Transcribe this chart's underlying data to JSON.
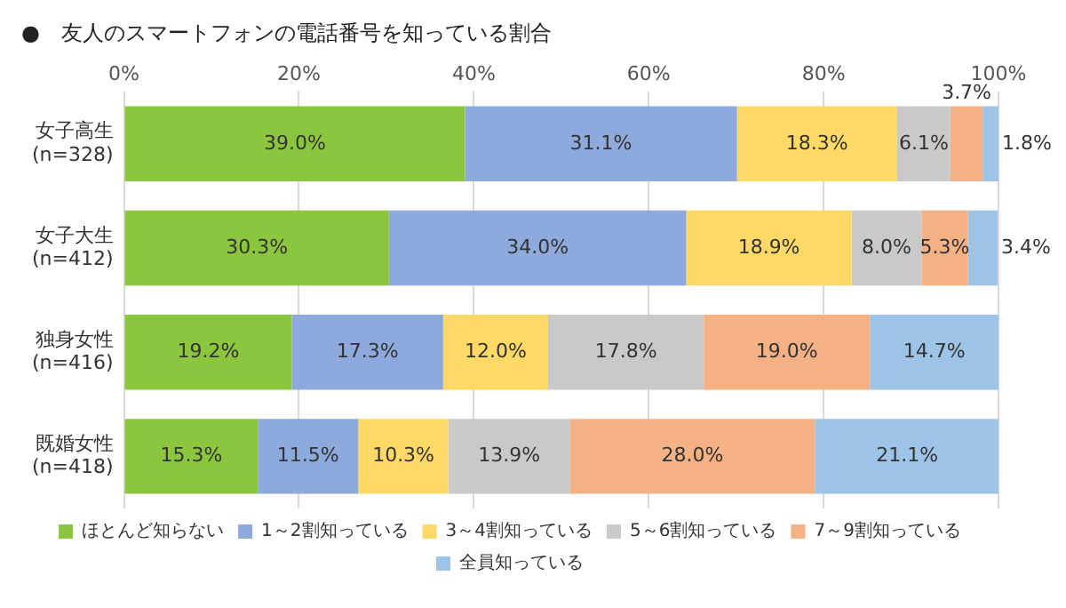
{
  "chart_data": {
    "type": "bar",
    "orientation": "horizontal",
    "stacked": true,
    "title": "●　友人のスマートフォンの電話番号を知っている割合",
    "categories": [
      "女子高生\n(n=328)",
      "女子大生\n(n=412)",
      "独身女性\n(n=416)",
      "既婚女性\n(n=418)"
    ],
    "series": [
      {
        "name": "ほとんど知らない",
        "color": "#8cc63f",
        "values": [
          39.0,
          30.3,
          19.2,
          15.3
        ],
        "value_labels": [
          "39.0%",
          "30.3%",
          "19.2%",
          "15.3%"
        ]
      },
      {
        "name": "1～2割知っている",
        "color": "#8ea9db",
        "values": [
          31.1,
          34.0,
          17.3,
          11.5
        ],
        "value_labels": [
          "31.1%",
          "34.0%",
          "17.3%",
          "11.5%"
        ]
      },
      {
        "name": "3～4割知っている",
        "color": "#ffd966",
        "values": [
          18.3,
          18.9,
          12.0,
          10.3
        ],
        "value_labels": [
          "18.3%",
          "18.9%",
          "12.0%",
          "10.3%"
        ]
      },
      {
        "name": "5～6割知っている",
        "color": "#c9c9c9",
        "values": [
          6.1,
          8.0,
          17.8,
          13.9
        ],
        "value_labels": [
          "6.1%",
          "8.0%",
          "17.8%",
          "13.9%"
        ]
      },
      {
        "name": "7～9割知っている",
        "color": "#f4b183",
        "values": [
          3.7,
          5.3,
          19.0,
          28.0
        ],
        "value_labels": [
          "3.7%",
          "5.3%",
          "19.0%",
          "28.0%"
        ]
      },
      {
        "name": "全員知っている",
        "color": "#9dc3e6",
        "values": [
          1.8,
          3.4,
          14.7,
          21.1
        ],
        "value_labels": [
          "1.8%",
          "3.4%",
          "14.7%",
          "21.1%"
        ]
      }
    ],
    "xlim": [
      0,
      100
    ],
    "xticks": [
      {
        "value": 0,
        "label": "0%"
      },
      {
        "value": 20,
        "label": "20%"
      },
      {
        "value": 40,
        "label": "40%"
      },
      {
        "value": 60,
        "label": "60%"
      },
      {
        "value": 80,
        "label": "80%"
      },
      {
        "value": 100,
        "label": "100%"
      }
    ],
    "grid": "x",
    "legend": "bottom"
  }
}
